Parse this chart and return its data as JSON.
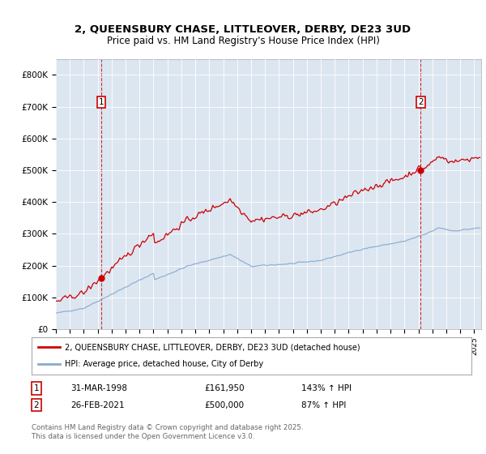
{
  "title_line1": "2, QUEENSBURY CHASE, LITTLEOVER, DERBY, DE23 3UD",
  "title_line2": "Price paid vs. HM Land Registry's House Price Index (HPI)",
  "title_fontsize": 9.5,
  "subtitle_fontsize": 8.5,
  "background_color": "#dce6f1",
  "plot_bg_color": "#dce6f1",
  "red_color": "#cc0000",
  "blue_color": "#88aacc",
  "dashed_red_color": "#cc0000",
  "ylim": [
    0,
    850000
  ],
  "yticks": [
    0,
    100000,
    200000,
    300000,
    400000,
    500000,
    600000,
    700000,
    800000
  ],
  "ytick_labels": [
    "£0",
    "£100K",
    "£200K",
    "£300K",
    "£400K",
    "£500K",
    "£600K",
    "£700K",
    "£800K"
  ],
  "legend_entries": [
    "2, QUEENSBURY CHASE, LITTLEOVER, DERBY, DE23 3UD (detached house)",
    "HPI: Average price, detached house, City of Derby"
  ],
  "annotation1_date": "31-MAR-1998",
  "annotation1_price": "£161,950",
  "annotation1_hpi": "143% ↑ HPI",
  "annotation2_date": "26-FEB-2021",
  "annotation2_price": "£500,000",
  "annotation2_hpi": "87% ↑ HPI",
  "footer": "Contains HM Land Registry data © Crown copyright and database right 2025.\nThis data is licensed under the Open Government Licence v3.0.",
  "sale1_year": 1998.25,
  "sale1_price": 161950,
  "sale2_year": 2021.15,
  "sale2_price": 500000
}
